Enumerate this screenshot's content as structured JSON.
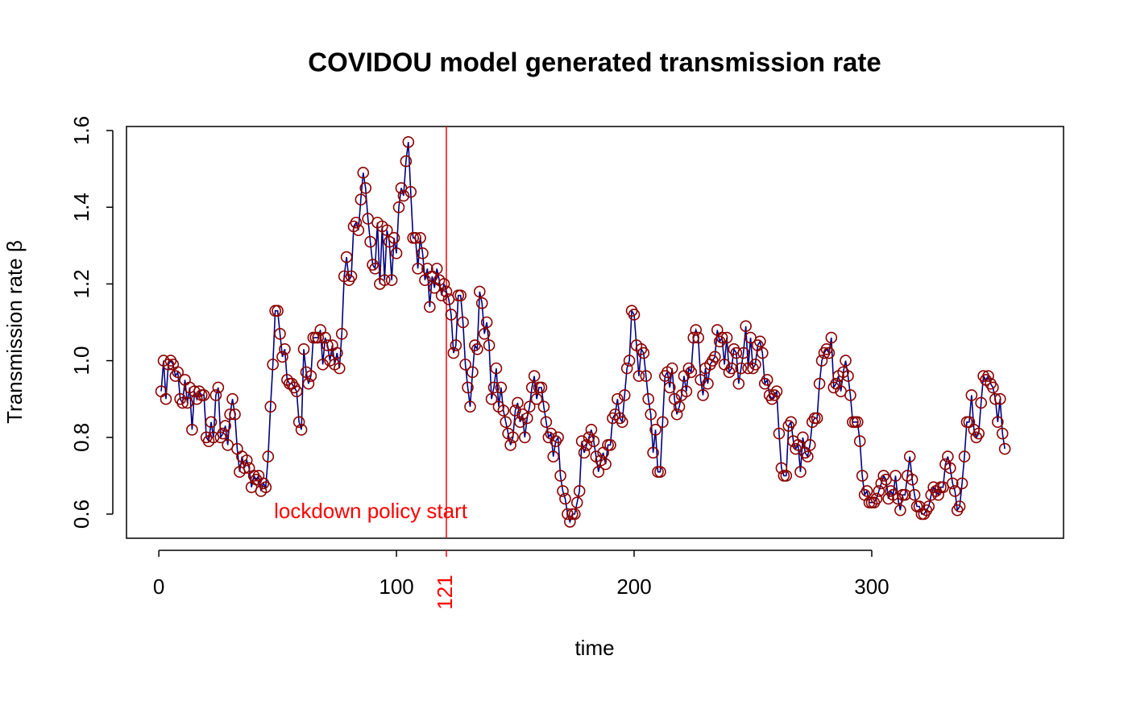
{
  "chart_data": {
    "type": "line",
    "title": "COVIDOU model generated transmission rate",
    "xlabel": "time",
    "ylabel": "Transmission rate β",
    "xlim": [
      -13.6,
      380.7
    ],
    "ylim": [
      0.537,
      1.6105
    ],
    "xticks": [
      0,
      100,
      200,
      300
    ],
    "yticks": [
      0.6,
      0.8,
      {
        "value": 1,
        "label": "1.0"
      },
      1.2,
      1.4,
      1.6
    ],
    "line_color": "#000080",
    "marker_color": "#8b0000",
    "vline": {
      "x": 121,
      "color": "#ff0000",
      "annotation": "lockdown policy start"
    },
    "x": [
      1,
      2,
      3,
      4,
      5,
      6,
      7,
      8,
      9,
      10,
      11,
      12,
      13,
      14,
      15,
      16,
      17,
      18,
      19,
      20,
      21,
      22,
      23,
      24,
      25,
      26,
      27,
      28,
      29,
      30,
      31,
      32,
      33,
      34,
      35,
      36,
      37,
      38,
      39,
      40,
      41,
      42,
      43,
      44,
      45,
      46,
      47,
      48,
      49,
      50,
      51,
      52,
      53,
      54,
      55,
      56,
      57,
      58,
      59,
      60,
      61,
      62,
      63,
      64,
      65,
      66,
      67,
      68,
      69,
      70,
      71,
      72,
      73,
      74,
      75,
      76,
      77,
      78,
      79,
      80,
      81,
      82,
      83,
      84,
      85,
      86,
      87,
      88,
      89,
      90,
      91,
      92,
      93,
      94,
      95,
      96,
      97,
      98,
      99,
      100,
      101,
      102,
      103,
      104,
      105,
      106,
      107,
      108,
      109,
      110,
      111,
      112,
      113,
      114,
      115,
      116,
      117,
      118,
      119,
      120,
      121,
      122,
      123,
      124,
      125,
      126,
      127,
      128,
      129,
      130,
      131,
      132,
      133,
      134,
      135,
      136,
      137,
      138,
      139,
      140,
      141,
      142,
      143,
      144,
      145,
      146,
      147,
      148,
      149,
      150,
      151,
      152,
      153,
      154,
      155,
      156,
      157,
      158,
      159,
      160,
      161,
      162,
      163,
      164,
      165,
      166,
      167,
      168,
      169,
      170,
      171,
      172,
      173,
      174,
      175,
      176,
      177,
      178,
      179,
      180,
      181,
      182,
      183,
      184,
      185,
      186,
      187,
      188,
      189,
      190,
      191,
      192,
      193,
      194,
      195,
      196,
      197,
      198,
      199,
      200,
      201,
      202,
      203,
      204,
      205,
      206,
      207,
      208,
      209,
      210,
      211,
      212,
      213,
      214,
      215,
      216,
      217,
      218,
      219,
      220,
      221,
      222,
      223,
      224,
      225,
      226,
      227,
      228,
      229,
      230,
      231,
      232,
      233,
      234,
      235,
      236,
      237,
      238,
      239,
      240,
      241,
      242,
      243,
      244,
      245,
      246,
      247,
      248,
      249,
      250,
      251,
      252,
      253,
      254,
      255,
      256,
      257,
      258,
      259,
      260,
      261,
      262,
      263,
      264,
      265,
      266,
      267,
      268,
      269,
      270,
      271,
      272,
      273,
      274,
      275,
      276,
      277,
      278,
      279,
      280,
      281,
      282,
      283,
      284,
      285,
      286,
      287,
      288,
      289,
      290,
      291,
      292,
      293,
      294,
      295,
      296,
      297,
      298,
      299,
      300,
      301,
      302,
      303,
      304,
      305,
      306,
      307,
      308,
      309,
      310,
      311,
      312,
      313,
      314,
      315,
      316,
      317,
      318,
      319,
      320,
      321,
      322,
      323,
      324,
      325,
      326,
      327,
      328,
      329,
      330,
      331,
      332,
      333,
      334,
      335,
      336,
      337,
      338,
      339,
      340,
      341,
      342,
      343,
      344,
      345,
      346,
      347,
      348,
      349,
      350,
      351,
      352,
      353,
      354,
      355,
      356
    ],
    "values": [
      0.92,
      1.0,
      0.9,
      0.99,
      1.0,
      0.99,
      0.96,
      0.97,
      0.9,
      0.89,
      0.95,
      0.89,
      0.93,
      0.82,
      0.92,
      0.9,
      0.92,
      0.91,
      0.91,
      0.8,
      0.79,
      0.84,
      0.8,
      0.91,
      0.93,
      0.8,
      0.81,
      0.83,
      0.78,
      0.86,
      0.9,
      0.86,
      0.77,
      0.71,
      0.75,
      0.72,
      0.74,
      0.72,
      0.67,
      0.7,
      0.69,
      0.7,
      0.66,
      0.68,
      0.67,
      0.75,
      0.88,
      0.99,
      1.13,
      1.13,
      1.07,
      1.01,
      1.03,
      0.95,
      0.94,
      0.94,
      0.93,
      0.92,
      0.84,
      0.82,
      1.03,
      0.97,
      0.94,
      0.96,
      1.06,
      1.06,
      1.06,
      1.08,
      0.99,
      1.06,
      1.04,
      1.0,
      1.04,
      0.99,
      1.02,
      0.98,
      1.07,
      1.22,
      1.27,
      1.21,
      1.22,
      1.35,
      1.36,
      1.34,
      1.42,
      1.49,
      1.45,
      1.37,
      1.31,
      1.25,
      1.24,
      1.36,
      1.2,
      1.35,
      1.21,
      1.34,
      1.31,
      1.21,
      1.32,
      1.28,
      1.4,
      1.45,
      1.43,
      1.52,
      1.57,
      1.44,
      1.32,
      1.32,
      1.24,
      1.32,
      1.28,
      1.21,
      1.24,
      1.14,
      1.22,
      1.19,
      1.24,
      1.21,
      1.17,
      1.2,
      1.18,
      1.16,
      1.12,
      1.02,
      1.04,
      1.17,
      1.17,
      1.1,
      0.99,
      0.93,
      0.88,
      0.97,
      1.04,
      1.03,
      1.18,
      1.15,
      1.07,
      1.1,
      1.04,
      0.9,
      0.93,
      0.98,
      0.88,
      0.93,
      0.87,
      0.84,
      0.81,
      0.78,
      0.8,
      0.87,
      0.89,
      0.84,
      0.86,
      0.8,
      0.85,
      0.88,
      0.93,
      0.96,
      0.9,
      0.93,
      0.93,
      0.88,
      0.84,
      0.8,
      0.81,
      0.75,
      0.79,
      0.8,
      0.7,
      0.66,
      0.64,
      0.6,
      0.58,
      0.6,
      0.6,
      0.63,
      0.66,
      0.79,
      0.76,
      0.78,
      0.8,
      0.82,
      0.79,
      0.75,
      0.71,
      0.74,
      0.76,
      0.73,
      0.78,
      0.78,
      0.85,
      0.86,
      0.9,
      0.85,
      0.84,
      0.91,
      0.98,
      1.0,
      1.13,
      1.12,
      1.04,
      0.96,
      1.03,
      1.02,
      0.96,
      0.9,
      0.86,
      0.76,
      0.82,
      0.71,
      0.71,
      0.84,
      0.96,
      0.97,
      0.93,
      0.98,
      0.9,
      0.86,
      0.88,
      0.91,
      0.96,
      0.92,
      0.98,
      0.97,
      1.06,
      1.08,
      1.06,
      0.95,
      0.91,
      0.98,
      0.94,
      0.99,
      1.0,
      1.01,
      1.08,
      1.05,
      1.06,
      0.99,
      1.06,
      0.97,
      0.98,
      1.03,
      1.02,
      0.94,
      0.98,
      1.02,
      1.09,
      0.98,
      1.06,
      0.98,
      0.99,
      1.04,
      1.05,
      1.02,
      0.94,
      0.95,
      0.91,
      0.9,
      0.91,
      0.92,
      0.81,
      0.72,
      0.7,
      0.7,
      0.83,
      0.84,
      0.79,
      0.77,
      0.78,
      0.71,
      0.8,
      0.76,
      0.75,
      0.78,
      0.84,
      0.85,
      0.85,
      0.94,
      1.0,
      1.02,
      1.03,
      1.02,
      1.06,
      0.93,
      0.94,
      0.96,
      0.92,
      0.97,
      1.0,
      0.96,
      0.91,
      0.84,
      0.84,
      0.84,
      0.79,
      0.7,
      0.65,
      0.66,
      0.63,
      0.63,
      0.63,
      0.64,
      0.66,
      0.68,
      0.7,
      0.69,
      0.64,
      0.66,
      0.65,
      0.7,
      0.64,
      0.61,
      0.65,
      0.65,
      0.7,
      0.75,
      0.69,
      0.65,
      0.62,
      0.62,
      0.6,
      0.6,
      0.61,
      0.62,
      0.65,
      0.67,
      0.66,
      0.65,
      0.67,
      0.67,
      0.73,
      0.75,
      0.72,
      0.68,
      0.66,
      0.61,
      0.62,
      0.68,
      0.75,
      0.84,
      0.84,
      0.91,
      0.82,
      0.8,
      0.81,
      0.89,
      0.96,
      0.95,
      0.96,
      0.94,
      0.93,
      0.9,
      0.84,
      0.9,
      0.81,
      0.77
    ]
  }
}
